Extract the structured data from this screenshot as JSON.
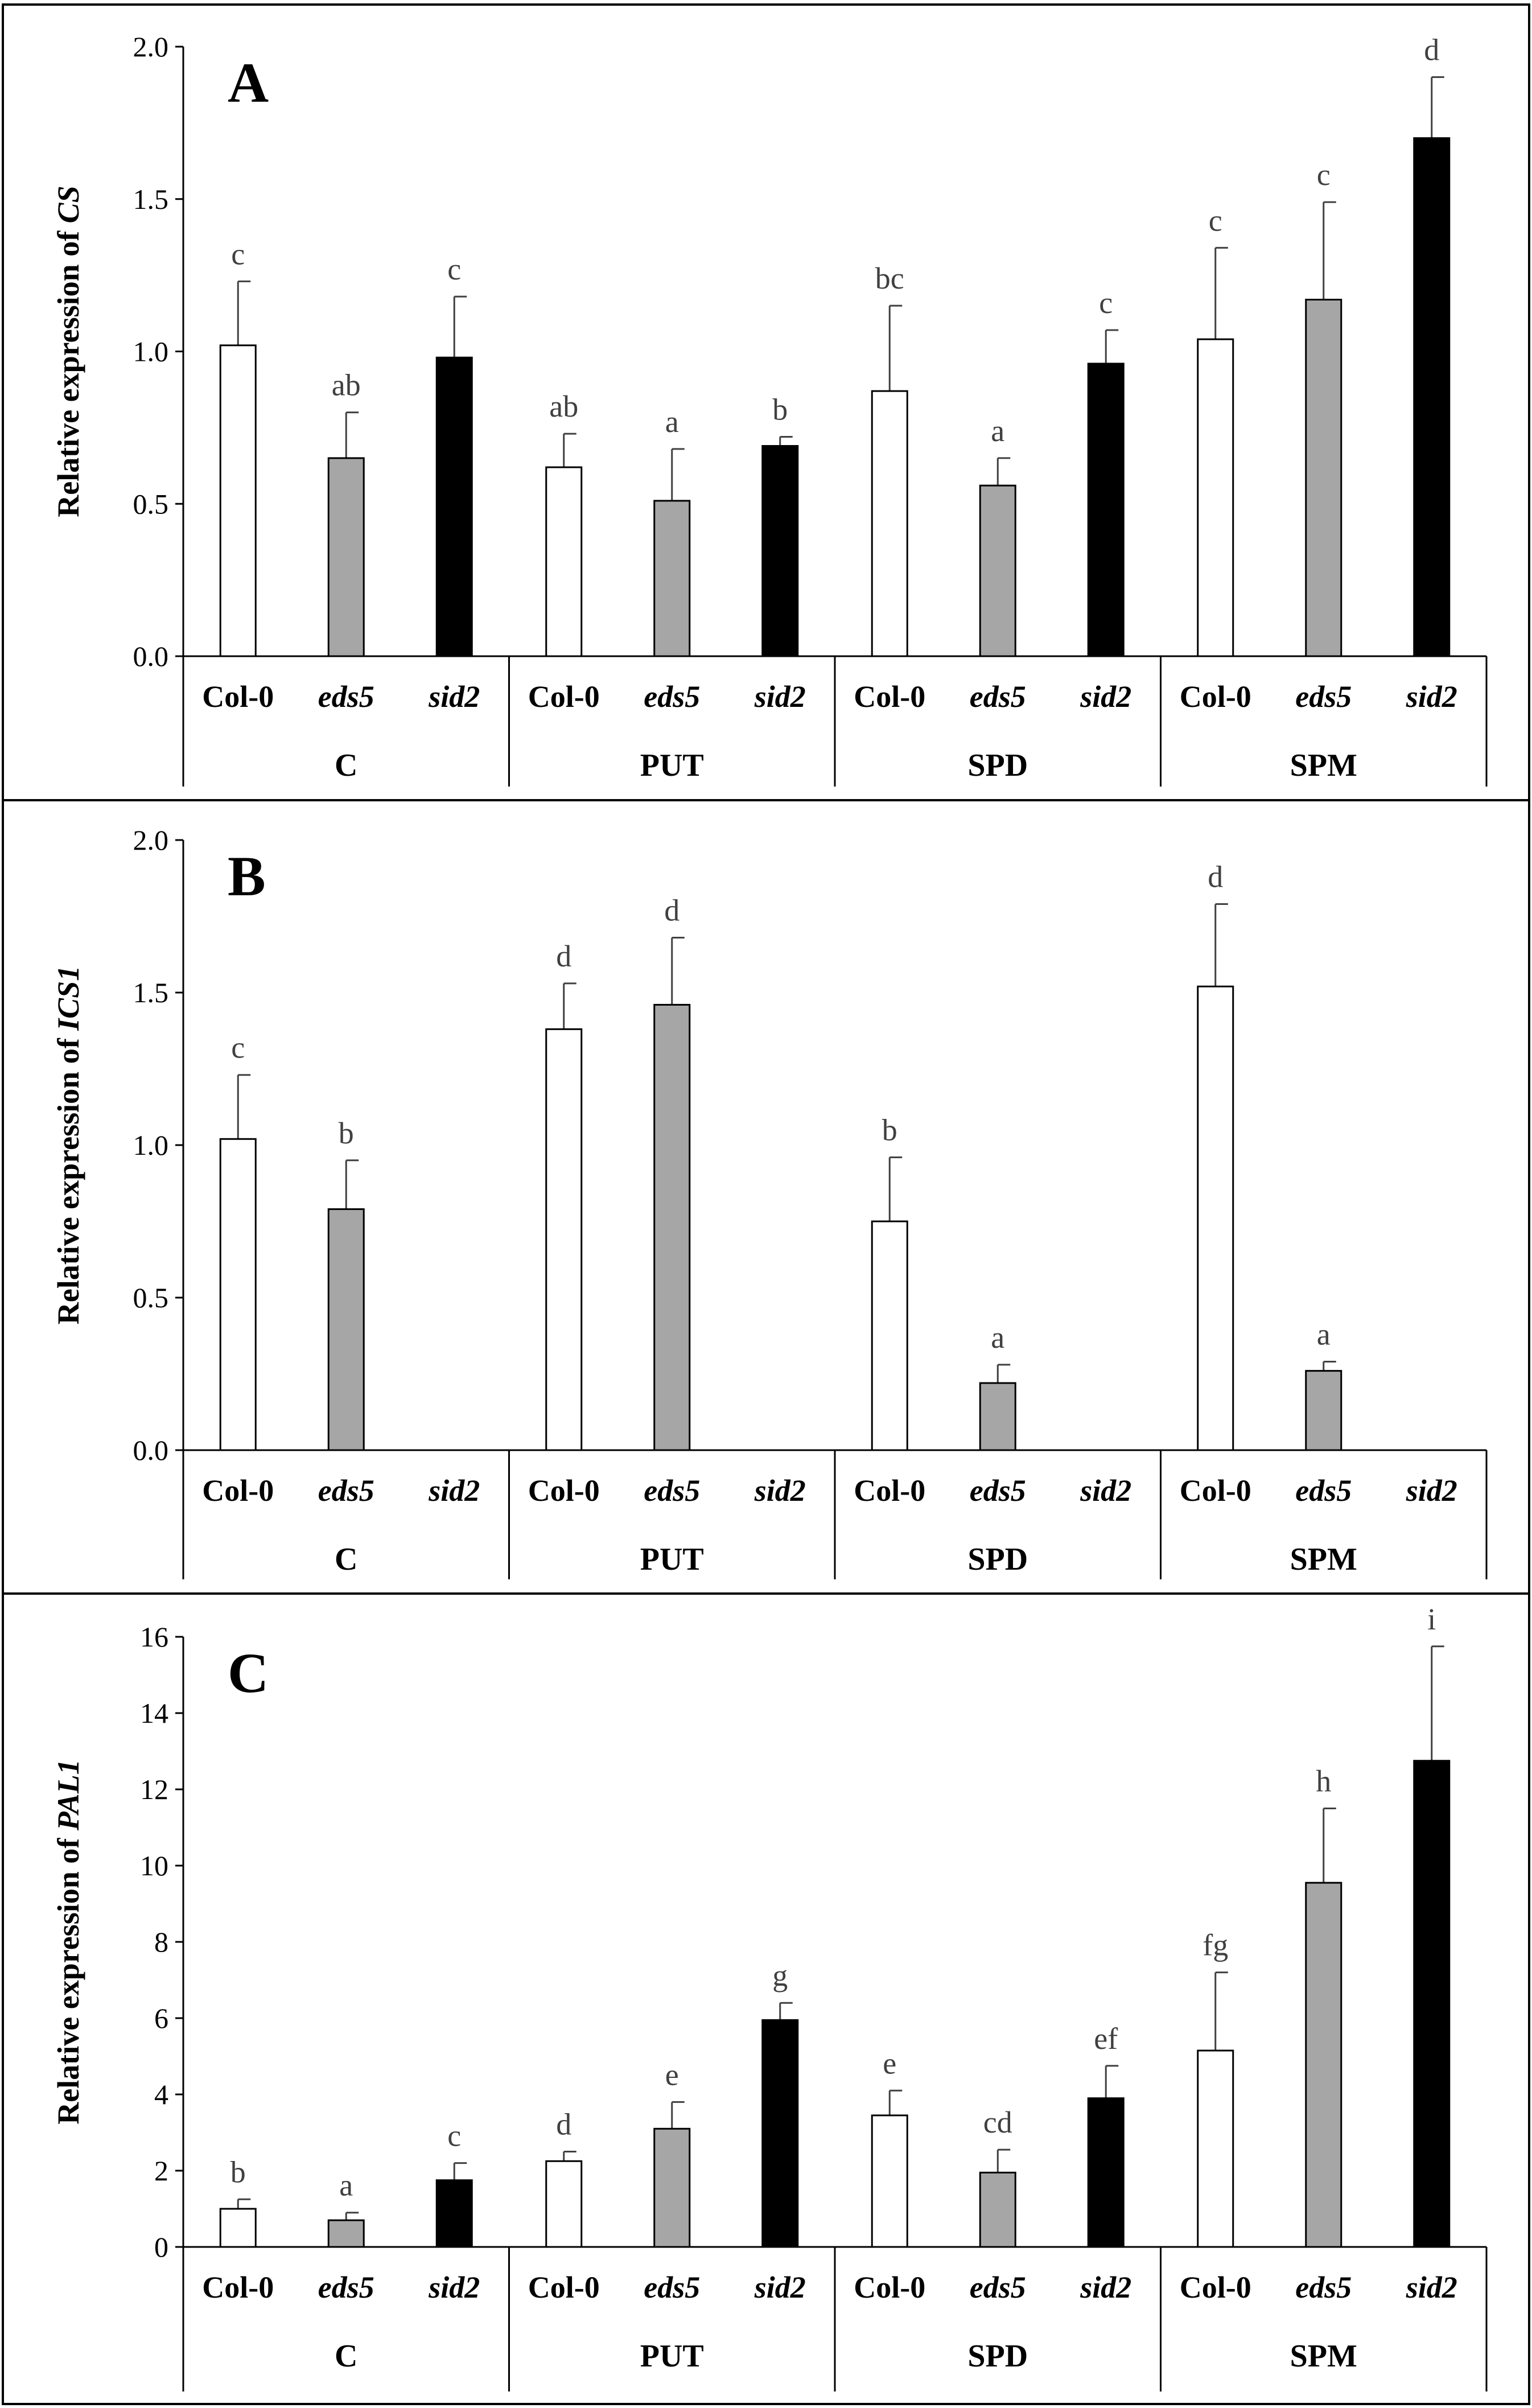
{
  "chart_data": [
    {
      "panel_label": "A",
      "type": "bar",
      "ylabel_prefix": "Relative expression of ",
      "ylabel_gene": "CS",
      "ylim": [
        0,
        2.0
      ],
      "yticks": [
        "0.0",
        "0.5",
        "1.0",
        "1.5",
        "2.0"
      ],
      "groups": [
        "C",
        "PUT",
        "SPD",
        "SPM"
      ],
      "genotypes": [
        "Col-0",
        "eds5",
        "sid2"
      ],
      "series": [
        {
          "genotype": "Col-0",
          "color": "#ffffff",
          "values": [
            1.02,
            0.62,
            0.87,
            1.04
          ],
          "errors": [
            0.21,
            0.11,
            0.28,
            0.3
          ],
          "letters": [
            "c",
            "ab",
            "bc",
            "c"
          ]
        },
        {
          "genotype": "eds5",
          "color": "#a6a6a6",
          "values": [
            0.65,
            0.51,
            0.56,
            1.17
          ],
          "errors": [
            0.15,
            0.17,
            0.09,
            0.32
          ],
          "letters": [
            "ab",
            "a",
            "a",
            "c"
          ]
        },
        {
          "genotype": "sid2",
          "color": "#000000",
          "values": [
            0.98,
            0.69,
            0.96,
            1.7
          ],
          "errors": [
            0.2,
            0.03,
            0.11,
            0.2
          ],
          "letters": [
            "c",
            "b",
            "c",
            "d"
          ]
        }
      ]
    },
    {
      "panel_label": "B",
      "type": "bar",
      "ylabel_prefix": "Relative expression of ",
      "ylabel_gene": "ICS1",
      "ylim": [
        0,
        2.0
      ],
      "yticks": [
        "0.0",
        "0.5",
        "1.0",
        "1.5",
        "2.0"
      ],
      "groups": [
        "C",
        "PUT",
        "SPD",
        "SPM"
      ],
      "genotypes": [
        "Col-0",
        "eds5",
        "sid2"
      ],
      "series": [
        {
          "genotype": "Col-0",
          "color": "#ffffff",
          "values": [
            1.02,
            1.38,
            0.75,
            1.52
          ],
          "errors": [
            0.21,
            0.15,
            0.21,
            0.27
          ],
          "letters": [
            "c",
            "d",
            "b",
            "d"
          ]
        },
        {
          "genotype": "eds5",
          "color": "#a6a6a6",
          "values": [
            0.79,
            1.46,
            0.22,
            0.26
          ],
          "errors": [
            0.16,
            0.22,
            0.06,
            0.03
          ],
          "letters": [
            "b",
            "d",
            "a",
            "a"
          ]
        },
        {
          "genotype": "sid2",
          "color": "#000000",
          "values": [
            null,
            null,
            null,
            null
          ],
          "errors": [
            null,
            null,
            null,
            null
          ],
          "letters": [
            "",
            "",
            "",
            ""
          ]
        }
      ]
    },
    {
      "panel_label": "C",
      "type": "bar",
      "ylabel_prefix": "Relative expression of ",
      "ylabel_gene": "PAL1",
      "ylim": [
        0,
        16
      ],
      "yticks": [
        "0",
        "2",
        "4",
        "6",
        "8",
        "10",
        "12",
        "14",
        "16"
      ],
      "groups": [
        "C",
        "PUT",
        "SPD",
        "SPM"
      ],
      "genotypes": [
        "Col-0",
        "eds5",
        "sid2"
      ],
      "series": [
        {
          "genotype": "Col-0",
          "color": "#ffffff",
          "values": [
            1.0,
            2.25,
            3.45,
            5.15
          ],
          "errors": [
            0.25,
            0.25,
            0.65,
            2.05
          ],
          "letters": [
            "b",
            "d",
            "e",
            "fg"
          ]
        },
        {
          "genotype": "eds5",
          "color": "#a6a6a6",
          "values": [
            0.7,
            3.1,
            1.95,
            9.55
          ],
          "errors": [
            0.2,
            0.7,
            0.6,
            1.95
          ],
          "letters": [
            "a",
            "e",
            "cd",
            "h"
          ]
        },
        {
          "genotype": "sid2",
          "color": "#000000",
          "values": [
            1.75,
            5.95,
            3.9,
            12.75
          ],
          "errors": [
            0.45,
            0.45,
            0.85,
            3.0
          ],
          "letters": [
            "c",
            "g",
            "ef",
            "i"
          ]
        }
      ]
    }
  ]
}
